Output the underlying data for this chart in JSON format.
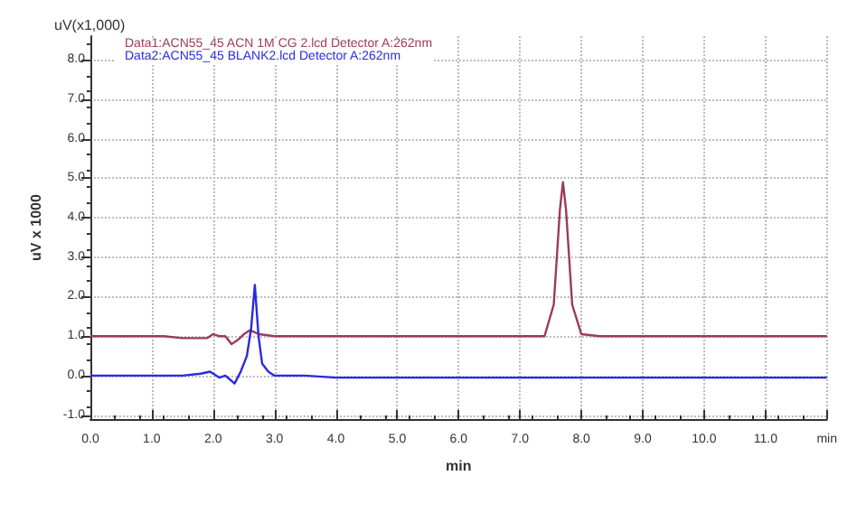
{
  "chart_data": {
    "type": "line",
    "xlabel": "min",
    "ylabel": "uV x 1000",
    "annotations": [
      "uV(x1,000)"
    ],
    "xlim": [
      0,
      12
    ],
    "ylim": [
      -1.1,
      8.6
    ],
    "xticks": [
      {
        "value": 0,
        "label": "0.0"
      },
      {
        "value": 1,
        "label": "1.0"
      },
      {
        "value": 2,
        "label": "2.0"
      },
      {
        "value": 3,
        "label": "3.0"
      },
      {
        "value": 4,
        "label": "4.0"
      },
      {
        "value": 5,
        "label": "5.0"
      },
      {
        "value": 6,
        "label": "6.0"
      },
      {
        "value": 7,
        "label": "7.0"
      },
      {
        "value": 8,
        "label": "8.0"
      },
      {
        "value": 9,
        "label": "9.0"
      },
      {
        "value": 10,
        "label": "10.0"
      },
      {
        "value": 11,
        "label": "11.0"
      },
      {
        "value": 12,
        "label": "min"
      }
    ],
    "yticks": [
      {
        "value": -1,
        "label": "-1.0"
      },
      {
        "value": 0,
        "label": "0.0"
      },
      {
        "value": 1,
        "label": "1.0"
      },
      {
        "value": 2,
        "label": "2.0"
      },
      {
        "value": 3,
        "label": "3.0"
      },
      {
        "value": 4,
        "label": "4.0"
      },
      {
        "value": 5,
        "label": "5.0"
      },
      {
        "value": 6,
        "label": "6.0"
      },
      {
        "value": 7,
        "label": "7.0"
      },
      {
        "value": 8,
        "label": "8.0"
      }
    ],
    "grid": true,
    "legend": "top left",
    "marker": "none",
    "line_style": "solid",
    "series": [
      {
        "name": "Data1:ACN55_45 ACN 1M CG 2.lcd Detector A:262nm",
        "color": "#9c3a5a",
        "x": [
          0,
          1.2,
          1.5,
          1.9,
          2.0,
          2.1,
          2.2,
          2.3,
          2.4,
          2.5,
          2.6,
          2.75,
          3.0,
          4,
          5,
          6,
          7,
          7.4,
          7.55,
          7.65,
          7.7,
          7.75,
          7.85,
          8.0,
          8.3,
          9,
          10,
          11,
          12
        ],
        "values": [
          1.0,
          1.0,
          0.95,
          0.95,
          1.05,
          1.0,
          1.0,
          0.8,
          0.9,
          1.05,
          1.15,
          1.05,
          1.0,
          1.0,
          1.0,
          1.0,
          1.0,
          1.0,
          1.8,
          4.2,
          4.9,
          4.2,
          1.8,
          1.05,
          1.0,
          1.0,
          1.0,
          1.0,
          1.0
        ]
      },
      {
        "name": "Data2:ACN55_45 BLANK2.lcd Detector A:262nm",
        "color": "#2a2ae0",
        "x": [
          0,
          1,
          1.5,
          1.8,
          1.95,
          2.1,
          2.2,
          2.35,
          2.45,
          2.55,
          2.62,
          2.68,
          2.74,
          2.8,
          2.9,
          3.0,
          3.5,
          4,
          6,
          8,
          10,
          12
        ],
        "values": [
          0.0,
          0.0,
          0.0,
          0.05,
          0.1,
          -0.05,
          0.0,
          -0.2,
          0.1,
          0.5,
          1.2,
          2.3,
          1.0,
          0.3,
          0.1,
          0.0,
          0.0,
          -0.05,
          -0.05,
          -0.05,
          -0.05,
          -0.05
        ]
      }
    ]
  }
}
